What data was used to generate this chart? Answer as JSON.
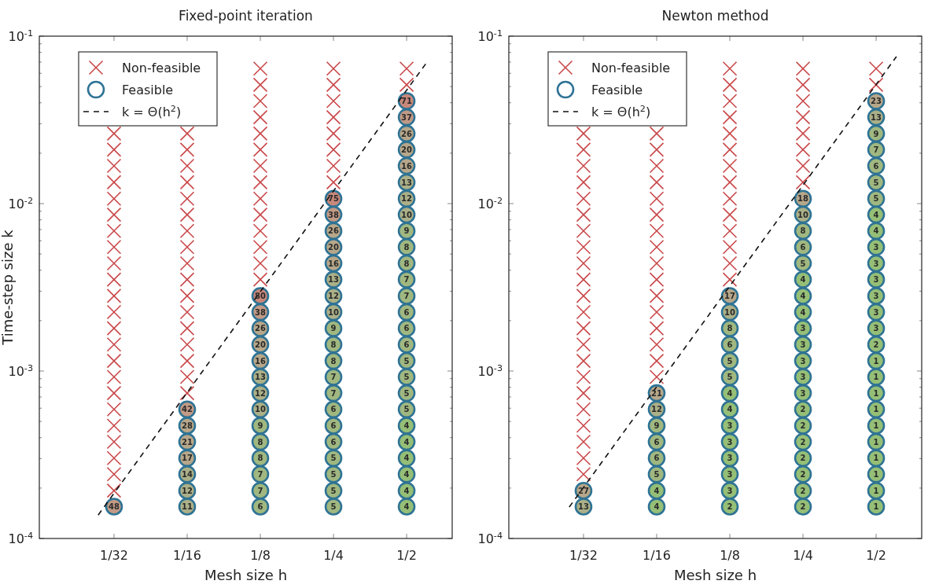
{
  "chart_data": [
    {
      "type": "scatter",
      "title": "Fixed-point iteration",
      "annotations": [
        {
          "text": "48",
          "x": 0.03125,
          "y": 0.000155
        },
        {
          "text": "42",
          "x": 0.0625,
          "y": 0.00059
        },
        {
          "text": "28",
          "x": 0.0625,
          "y": 0.000472
        },
        {
          "text": "21",
          "x": 0.0625,
          "y": 0.000378
        },
        {
          "text": "17",
          "x": 0.0625,
          "y": 0.000302
        },
        {
          "text": "14",
          "x": 0.0625,
          "y": 0.000242
        },
        {
          "text": "12",
          "x": 0.0625,
          "y": 0.000193
        },
        {
          "text": "11",
          "x": 0.0625,
          "y": 0.000155
        },
        {
          "text": "80",
          "x": 0.125,
          "y": 0.00281
        },
        {
          "text": "38",
          "x": 0.125,
          "y": 0.00225
        },
        {
          "text": "26",
          "x": 0.125,
          "y": 0.0018
        },
        {
          "text": "20",
          "x": 0.125,
          "y": 0.00144
        },
        {
          "text": "16",
          "x": 0.125,
          "y": 0.00115
        },
        {
          "text": "13",
          "x": 0.125,
          "y": 0.000922
        },
        {
          "text": "12",
          "x": 0.125,
          "y": 0.000738
        },
        {
          "text": "10",
          "x": 0.125,
          "y": 0.00059
        },
        {
          "text": "9",
          "x": 0.125,
          "y": 0.000472
        },
        {
          "text": "8",
          "x": 0.125,
          "y": 0.000378
        },
        {
          "text": "8",
          "x": 0.125,
          "y": 0.000302
        },
        {
          "text": "7",
          "x": 0.125,
          "y": 0.000242
        },
        {
          "text": "7",
          "x": 0.125,
          "y": 0.000193
        },
        {
          "text": "6",
          "x": 0.125,
          "y": 0.000155
        },
        {
          "text": "75",
          "x": 0.25,
          "y": 0.0107
        },
        {
          "text": "38",
          "x": 0.25,
          "y": 0.00859
        },
        {
          "text": "26",
          "x": 0.25,
          "y": 0.00687
        },
        {
          "text": "20",
          "x": 0.25,
          "y": 0.0055
        },
        {
          "text": "16",
          "x": 0.25,
          "y": 0.0044
        },
        {
          "text": "13",
          "x": 0.25,
          "y": 0.00352
        },
        {
          "text": "12",
          "x": 0.25,
          "y": 0.00281
        },
        {
          "text": "10",
          "x": 0.25,
          "y": 0.00225
        },
        {
          "text": "9",
          "x": 0.25,
          "y": 0.0018
        },
        {
          "text": "8",
          "x": 0.25,
          "y": 0.00144
        },
        {
          "text": "8",
          "x": 0.25,
          "y": 0.00115
        },
        {
          "text": "7",
          "x": 0.25,
          "y": 0.000922
        },
        {
          "text": "7",
          "x": 0.25,
          "y": 0.000738
        },
        {
          "text": "6",
          "x": 0.25,
          "y": 0.00059
        },
        {
          "text": "6",
          "x": 0.25,
          "y": 0.000472
        },
        {
          "text": "6",
          "x": 0.25,
          "y": 0.000378
        },
        {
          "text": "5",
          "x": 0.25,
          "y": 0.000302
        },
        {
          "text": "5",
          "x": 0.25,
          "y": 0.000242
        },
        {
          "text": "5",
          "x": 0.25,
          "y": 0.000193
        },
        {
          "text": "5",
          "x": 0.25,
          "y": 0.000155
        },
        {
          "text": "71",
          "x": 0.5,
          "y": 0.041
        },
        {
          "text": "37",
          "x": 0.5,
          "y": 0.0328
        },
        {
          "text": "26",
          "x": 0.5,
          "y": 0.0262
        },
        {
          "text": "20",
          "x": 0.5,
          "y": 0.021
        },
        {
          "text": "16",
          "x": 0.5,
          "y": 0.0168
        },
        {
          "text": "13",
          "x": 0.5,
          "y": 0.0134
        },
        {
          "text": "12",
          "x": 0.5,
          "y": 0.0107
        },
        {
          "text": "10",
          "x": 0.5,
          "y": 0.00859
        },
        {
          "text": "9",
          "x": 0.5,
          "y": 0.00687
        },
        {
          "text": "8",
          "x": 0.5,
          "y": 0.0055
        },
        {
          "text": "8",
          "x": 0.5,
          "y": 0.0044
        },
        {
          "text": "7",
          "x": 0.5,
          "y": 0.00352
        },
        {
          "text": "7",
          "x": 0.5,
          "y": 0.00281
        },
        {
          "text": "6",
          "x": 0.5,
          "y": 0.00225
        },
        {
          "text": "6",
          "x": 0.5,
          "y": 0.0018
        },
        {
          "text": "6",
          "x": 0.5,
          "y": 0.00144
        },
        {
          "text": "5",
          "x": 0.5,
          "y": 0.00115
        },
        {
          "text": "5",
          "x": 0.5,
          "y": 0.000922
        },
        {
          "text": "5",
          "x": 0.5,
          "y": 0.000738
        },
        {
          "text": "5",
          "x": 0.5,
          "y": 0.00059
        },
        {
          "text": "4",
          "x": 0.5,
          "y": 0.000472
        },
        {
          "text": "4",
          "x": 0.5,
          "y": 0.000378
        },
        {
          "text": "4",
          "x": 0.5,
          "y": 0.000302
        },
        {
          "text": "4",
          "x": 0.5,
          "y": 0.000242
        },
        {
          "text": "4",
          "x": 0.5,
          "y": 0.000193
        },
        {
          "text": "4",
          "x": 0.5,
          "y": 0.000155
        }
      ],
      "xlabel": "Mesh size h",
      "ylabel": "Time-step size k",
      "log": "xy",
      "legend": "top left",
      "xlim": [
        0.0154,
        0.77
      ],
      "ylim": [
        0.0001,
        0.1
      ],
      "xticks": [
        {
          "value": 0.03125,
          "label": "1/32"
        },
        {
          "value": 0.0625,
          "label": "1/16"
        },
        {
          "value": 0.125,
          "label": "1/8"
        },
        {
          "value": 0.25,
          "label": "1/4"
        },
        {
          "value": 0.5,
          "label": "1/2"
        }
      ],
      "yticks": [
        {
          "value": 0.0001,
          "label": "10$^{-4}$"
        },
        {
          "value": 0.0002,
          "label": null
        },
        {
          "value": 0.0003,
          "label": null
        },
        {
          "value": 0.0004,
          "label": null
        },
        {
          "value": 0.0005,
          "label": null
        },
        {
          "value": 0.0006,
          "label": null
        },
        {
          "value": 0.0007,
          "label": null
        },
        {
          "value": 0.0008,
          "label": null
        },
        {
          "value": 0.0009,
          "label": null
        },
        {
          "value": 0.001,
          "label": "10$^{-3}$"
        },
        {
          "value": 0.002,
          "label": null
        },
        {
          "value": 0.003,
          "label": null
        },
        {
          "value": 0.004,
          "label": null
        },
        {
          "value": 0.005,
          "label": null
        },
        {
          "value": 0.006,
          "label": null
        },
        {
          "value": 0.007,
          "label": null
        },
        {
          "value": 0.008,
          "label": null
        },
        {
          "value": 0.009,
          "label": null
        },
        {
          "value": 0.01,
          "label": "10$^{-2}$"
        },
        {
          "value": 0.02,
          "label": null
        },
        {
          "value": 0.03,
          "label": null
        },
        {
          "value": 0.04,
          "label": null
        },
        {
          "value": 0.05,
          "label": null
        },
        {
          "value": 0.06,
          "label": null
        },
        {
          "value": 0.07,
          "label": null
        },
        {
          "value": 0.08,
          "label": null
        },
        {
          "value": 0.09,
          "label": null
        },
        {
          "value": 0.1,
          "label": "10$^{-1}$"
        }
      ],
      "series": [
        {
          "name": "Non-feasible",
          "type": "scatter",
          "marker": "cross",
          "color": "#c9484a",
          "x": [
            0.03125,
            0.03125,
            0.03125,
            0.03125,
            0.03125,
            0.03125,
            0.03125,
            0.03125,
            0.03125,
            0.03125,
            0.03125,
            0.03125,
            0.03125,
            0.03125,
            0.03125,
            0.03125,
            0.03125,
            0.03125,
            0.03125,
            0.03125,
            0.03125,
            0.03125,
            0.03125,
            0.0625,
            0.0625,
            0.0625,
            0.0625,
            0.0625,
            0.0625,
            0.0625,
            0.0625,
            0.0625,
            0.0625,
            0.0625,
            0.0625,
            0.0625,
            0.0625,
            0.0625,
            0.0625,
            0.0625,
            0.125,
            0.125,
            0.125,
            0.125,
            0.125,
            0.125,
            0.125,
            0.125,
            0.125,
            0.125,
            0.125,
            0.125,
            0.125,
            0.125,
            0.25,
            0.25,
            0.25,
            0.25,
            0.25,
            0.25,
            0.25,
            0.25,
            0.5,
            0.5
          ],
          "values": [
            0.0262,
            0.021,
            0.0168,
            0.0134,
            0.0107,
            0.00859,
            0.00687,
            0.0055,
            0.0044,
            0.00352,
            0.00281,
            0.00225,
            0.0018,
            0.00144,
            0.00115,
            0.000922,
            0.000738,
            0.00059,
            0.000472,
            0.000378,
            0.000302,
            0.000242,
            0.000193,
            0.0262,
            0.021,
            0.0168,
            0.0134,
            0.0107,
            0.00859,
            0.00687,
            0.0055,
            0.0044,
            0.00352,
            0.00281,
            0.00225,
            0.0018,
            0.00144,
            0.00115,
            0.000922,
            0.000738,
            0.064,
            0.0512,
            0.041,
            0.0328,
            0.0262,
            0.021,
            0.0168,
            0.0134,
            0.0107,
            0.00859,
            0.00687,
            0.0055,
            0.0044,
            0.00352,
            0.064,
            0.0512,
            0.041,
            0.0328,
            0.0262,
            0.021,
            0.0168,
            0.0134,
            0.064,
            0.0512
          ]
        },
        {
          "name": "Feasible",
          "type": "scatter",
          "marker": "circle",
          "color": "#2f7394",
          "x": [
            0.03125,
            0.0625,
            0.0625,
            0.0625,
            0.0625,
            0.0625,
            0.0625,
            0.0625,
            0.125,
            0.125,
            0.125,
            0.125,
            0.125,
            0.125,
            0.125,
            0.125,
            0.125,
            0.125,
            0.125,
            0.125,
            0.125,
            0.125,
            0.25,
            0.25,
            0.25,
            0.25,
            0.25,
            0.25,
            0.25,
            0.25,
            0.25,
            0.25,
            0.25,
            0.25,
            0.25,
            0.25,
            0.25,
            0.25,
            0.25,
            0.25,
            0.25,
            0.25,
            0.5,
            0.5,
            0.5,
            0.5,
            0.5,
            0.5,
            0.5,
            0.5,
            0.5,
            0.5,
            0.5,
            0.5,
            0.5,
            0.5,
            0.5,
            0.5,
            0.5,
            0.5,
            0.5,
            0.5,
            0.5,
            0.5,
            0.5,
            0.5,
            0.5,
            0.5
          ],
          "values": [
            0.000155,
            0.00059,
            0.000472,
            0.000378,
            0.000302,
            0.000242,
            0.000193,
            0.000155,
            0.00281,
            0.00225,
            0.0018,
            0.00144,
            0.00115,
            0.000922,
            0.000738,
            0.00059,
            0.000472,
            0.000378,
            0.000302,
            0.000242,
            0.000193,
            0.000155,
            0.0107,
            0.00859,
            0.00687,
            0.0055,
            0.0044,
            0.00352,
            0.00281,
            0.00225,
            0.0018,
            0.00144,
            0.00115,
            0.000922,
            0.000738,
            0.00059,
            0.000472,
            0.000378,
            0.000302,
            0.000242,
            0.000193,
            0.000155,
            0.041,
            0.0328,
            0.0262,
            0.021,
            0.0168,
            0.0134,
            0.0107,
            0.00859,
            0.00687,
            0.0055,
            0.0044,
            0.00352,
            0.00281,
            0.00225,
            0.0018,
            0.00144,
            0.00115,
            0.000922,
            0.000738,
            0.00059,
            0.000472,
            0.000378,
            0.000302,
            0.000242,
            0.000193,
            0.000155
          ],
          "colors": [
            "#c29a85",
            "#c29a85",
            "#b7a78a",
            "#b7a78a",
            "#b7a78a",
            "#abb088",
            "#abb088",
            "#abb088",
            "#c8887a",
            "#c29a85",
            "#b7a78a",
            "#b7a78a",
            "#b7a78a",
            "#abb088",
            "#abb088",
            "#abb088",
            "#a0b880",
            "#a0b880",
            "#a0b880",
            "#a0b880",
            "#a0b880",
            "#a0b880",
            "#c8887a",
            "#c29a85",
            "#b7a78a",
            "#b7a78a",
            "#b7a78a",
            "#abb088",
            "#abb088",
            "#abb088",
            "#a0b880",
            "#a0b880",
            "#a0b880",
            "#a0b880",
            "#a0b880",
            "#a0b880",
            "#a0b880",
            "#a0b880",
            "#a0b880",
            "#a0b880",
            "#a0b880",
            "#a0b880",
            "#c8887a",
            "#c29a85",
            "#b7a78a",
            "#b7a78a",
            "#b7a78a",
            "#abb088",
            "#abb088",
            "#abb088",
            "#a0b880",
            "#a0b880",
            "#a0b880",
            "#a0b880",
            "#a0b880",
            "#a0b880",
            "#a0b880",
            "#a0b880",
            "#a0b880",
            "#a0b880",
            "#a0b880",
            "#a0b880",
            "#95bf76",
            "#95bf76",
            "#95bf76",
            "#95bf76",
            "#95bf76",
            "#95bf76"
          ]
        },
        {
          "name": "k = Θ(h$^{2}$)",
          "type": "line",
          "line_style": "dashed",
          "color": "#111111",
          "x": [
            0.0269,
            0.603
          ],
          "values": [
            0.000138,
            0.0692
          ]
        }
      ]
    },
    {
      "type": "scatter",
      "title": "Newton method",
      "annotations": [
        {
          "text": "27",
          "x": 0.03125,
          "y": 0.000193
        },
        {
          "text": "13",
          "x": 0.03125,
          "y": 0.000155
        },
        {
          "text": "21",
          "x": 0.0625,
          "y": 0.000738
        },
        {
          "text": "12",
          "x": 0.0625,
          "y": 0.00059
        },
        {
          "text": "9",
          "x": 0.0625,
          "y": 0.000472
        },
        {
          "text": "6",
          "x": 0.0625,
          "y": 0.000378
        },
        {
          "text": "6",
          "x": 0.0625,
          "y": 0.000302
        },
        {
          "text": "5",
          "x": 0.0625,
          "y": 0.000242
        },
        {
          "text": "4",
          "x": 0.0625,
          "y": 0.000193
        },
        {
          "text": "4",
          "x": 0.0625,
          "y": 0.000155
        },
        {
          "text": "17",
          "x": 0.125,
          "y": 0.00281
        },
        {
          "text": "10",
          "x": 0.125,
          "y": 0.00225
        },
        {
          "text": "8",
          "x": 0.125,
          "y": 0.0018
        },
        {
          "text": "6",
          "x": 0.125,
          "y": 0.00144
        },
        {
          "text": "5",
          "x": 0.125,
          "y": 0.00115
        },
        {
          "text": "5",
          "x": 0.125,
          "y": 0.000922
        },
        {
          "text": "4",
          "x": 0.125,
          "y": 0.000738
        },
        {
          "text": "4",
          "x": 0.125,
          "y": 0.00059
        },
        {
          "text": "3",
          "x": 0.125,
          "y": 0.000472
        },
        {
          "text": "3",
          "x": 0.125,
          "y": 0.000378
        },
        {
          "text": "3",
          "x": 0.125,
          "y": 0.000302
        },
        {
          "text": "3",
          "x": 0.125,
          "y": 0.000242
        },
        {
          "text": "3",
          "x": 0.125,
          "y": 0.000193
        },
        {
          "text": "2",
          "x": 0.125,
          "y": 0.000155
        },
        {
          "text": "18",
          "x": 0.25,
          "y": 0.0107
        },
        {
          "text": "10",
          "x": 0.25,
          "y": 0.00859
        },
        {
          "text": "8",
          "x": 0.25,
          "y": 0.00687
        },
        {
          "text": "6",
          "x": 0.25,
          "y": 0.0055
        },
        {
          "text": "5",
          "x": 0.25,
          "y": 0.0044
        },
        {
          "text": "4",
          "x": 0.25,
          "y": 0.00352
        },
        {
          "text": "4",
          "x": 0.25,
          "y": 0.00281
        },
        {
          "text": "4",
          "x": 0.25,
          "y": 0.00225
        },
        {
          "text": "3",
          "x": 0.25,
          "y": 0.0018
        },
        {
          "text": "3",
          "x": 0.25,
          "y": 0.00144
        },
        {
          "text": "3",
          "x": 0.25,
          "y": 0.00115
        },
        {
          "text": "3",
          "x": 0.25,
          "y": 0.000922
        },
        {
          "text": "3",
          "x": 0.25,
          "y": 0.000738
        },
        {
          "text": "2",
          "x": 0.25,
          "y": 0.00059
        },
        {
          "text": "2",
          "x": 0.25,
          "y": 0.000472
        },
        {
          "text": "2",
          "x": 0.25,
          "y": 0.000378
        },
        {
          "text": "2",
          "x": 0.25,
          "y": 0.000302
        },
        {
          "text": "2",
          "x": 0.25,
          "y": 0.000242
        },
        {
          "text": "2",
          "x": 0.25,
          "y": 0.000193
        },
        {
          "text": "2",
          "x": 0.25,
          "y": 0.000155
        },
        {
          "text": "23",
          "x": 0.5,
          "y": 0.041
        },
        {
          "text": "13",
          "x": 0.5,
          "y": 0.0328
        },
        {
          "text": "9",
          "x": 0.5,
          "y": 0.0262
        },
        {
          "text": "7",
          "x": 0.5,
          "y": 0.021
        },
        {
          "text": "6",
          "x": 0.5,
          "y": 0.0168
        },
        {
          "text": "5",
          "x": 0.5,
          "y": 0.0134
        },
        {
          "text": "5",
          "x": 0.5,
          "y": 0.0107
        },
        {
          "text": "4",
          "x": 0.5,
          "y": 0.00859
        },
        {
          "text": "4",
          "x": 0.5,
          "y": 0.00687
        },
        {
          "text": "3",
          "x": 0.5,
          "y": 0.0055
        },
        {
          "text": "3",
          "x": 0.5,
          "y": 0.0044
        },
        {
          "text": "3",
          "x": 0.5,
          "y": 0.00352
        },
        {
          "text": "3",
          "x": 0.5,
          "y": 0.00281
        },
        {
          "text": "3",
          "x": 0.5,
          "y": 0.00225
        },
        {
          "text": "3",
          "x": 0.5,
          "y": 0.0018
        },
        {
          "text": "2",
          "x": 0.5,
          "y": 0.00144
        },
        {
          "text": "1",
          "x": 0.5,
          "y": 0.00115
        },
        {
          "text": "1",
          "x": 0.5,
          "y": 0.000922
        },
        {
          "text": "1",
          "x": 0.5,
          "y": 0.000738
        },
        {
          "text": "1",
          "x": 0.5,
          "y": 0.00059
        },
        {
          "text": "1",
          "x": 0.5,
          "y": 0.000472
        },
        {
          "text": "1",
          "x": 0.5,
          "y": 0.000378
        },
        {
          "text": "1",
          "x": 0.5,
          "y": 0.000302
        },
        {
          "text": "1",
          "x": 0.5,
          "y": 0.000242
        },
        {
          "text": "1",
          "x": 0.5,
          "y": 0.000193
        },
        {
          "text": "1",
          "x": 0.5,
          "y": 0.000155
        }
      ],
      "xlabel": "Mesh size h",
      "log": "xy",
      "legend": "top left",
      "xlim": [
        0.0154,
        0.77
      ],
      "ylim": [
        0.0001,
        0.1
      ],
      "xticks": [
        {
          "value": 0.03125,
          "label": "1/32"
        },
        {
          "value": 0.0625,
          "label": "1/16"
        },
        {
          "value": 0.125,
          "label": "1/8"
        },
        {
          "value": 0.25,
          "label": "1/4"
        },
        {
          "value": 0.5,
          "label": "1/2"
        }
      ],
      "yticks": [
        {
          "value": 0.0001,
          "label": "10$^{-4}$"
        },
        {
          "value": 0.0002,
          "label": null
        },
        {
          "value": 0.0003,
          "label": null
        },
        {
          "value": 0.0004,
          "label": null
        },
        {
          "value": 0.0005,
          "label": null
        },
        {
          "value": 0.0006,
          "label": null
        },
        {
          "value": 0.0007,
          "label": null
        },
        {
          "value": 0.0008,
          "label": null
        },
        {
          "value": 0.0009,
          "label": null
        },
        {
          "value": 0.001,
          "label": "10$^{-3}$"
        },
        {
          "value": 0.002,
          "label": null
        },
        {
          "value": 0.003,
          "label": null
        },
        {
          "value": 0.004,
          "label": null
        },
        {
          "value": 0.005,
          "label": null
        },
        {
          "value": 0.006,
          "label": null
        },
        {
          "value": 0.007,
          "label": null
        },
        {
          "value": 0.008,
          "label": null
        },
        {
          "value": 0.009,
          "label": null
        },
        {
          "value": 0.01,
          "label": "10$^{-2}$"
        },
        {
          "value": 0.02,
          "label": null
        },
        {
          "value": 0.03,
          "label": null
        },
        {
          "value": 0.04,
          "label": null
        },
        {
          "value": 0.05,
          "label": null
        },
        {
          "value": 0.06,
          "label": null
        },
        {
          "value": 0.07,
          "label": null
        },
        {
          "value": 0.08,
          "label": null
        },
        {
          "value": 0.09,
          "label": null
        },
        {
          "value": 0.1,
          "label": "10$^{-1}$"
        }
      ],
      "series": [
        {
          "name": "Non-feasible",
          "type": "scatter",
          "marker": "cross",
          "color": "#c9484a",
          "x": [
            0.03125,
            0.03125,
            0.03125,
            0.03125,
            0.03125,
            0.03125,
            0.03125,
            0.03125,
            0.03125,
            0.03125,
            0.03125,
            0.03125,
            0.03125,
            0.03125,
            0.03125,
            0.03125,
            0.03125,
            0.03125,
            0.03125,
            0.03125,
            0.03125,
            0.03125,
            0.0625,
            0.0625,
            0.0625,
            0.0625,
            0.0625,
            0.0625,
            0.0625,
            0.0625,
            0.0625,
            0.0625,
            0.0625,
            0.0625,
            0.0625,
            0.0625,
            0.0625,
            0.0625,
            0.125,
            0.125,
            0.125,
            0.125,
            0.125,
            0.125,
            0.125,
            0.125,
            0.125,
            0.125,
            0.125,
            0.125,
            0.125,
            0.125,
            0.25,
            0.25,
            0.25,
            0.25,
            0.25,
            0.25,
            0.25,
            0.25,
            0.5,
            0.5
          ],
          "values": [
            0.0262,
            0.021,
            0.0168,
            0.0134,
            0.0107,
            0.00859,
            0.00687,
            0.0055,
            0.0044,
            0.00352,
            0.00281,
            0.00225,
            0.0018,
            0.00144,
            0.00115,
            0.000922,
            0.000738,
            0.00059,
            0.000472,
            0.000378,
            0.000302,
            0.000242,
            0.0262,
            0.021,
            0.0168,
            0.0134,
            0.0107,
            0.00859,
            0.00687,
            0.0055,
            0.0044,
            0.00352,
            0.00281,
            0.00225,
            0.0018,
            0.00144,
            0.00115,
            0.000922,
            0.064,
            0.0512,
            0.041,
            0.0328,
            0.0262,
            0.021,
            0.0168,
            0.0134,
            0.0107,
            0.00859,
            0.00687,
            0.0055,
            0.0044,
            0.00352,
            0.064,
            0.0512,
            0.041,
            0.0328,
            0.0262,
            0.021,
            0.0168,
            0.0134,
            0.064,
            0.0512
          ]
        },
        {
          "name": "Feasible",
          "type": "scatter",
          "marker": "circle",
          "color": "#2f7394",
          "x": [
            0.03125,
            0.03125,
            0.0625,
            0.0625,
            0.0625,
            0.0625,
            0.0625,
            0.0625,
            0.0625,
            0.0625,
            0.125,
            0.125,
            0.125,
            0.125,
            0.125,
            0.125,
            0.125,
            0.125,
            0.125,
            0.125,
            0.125,
            0.125,
            0.125,
            0.125,
            0.25,
            0.25,
            0.25,
            0.25,
            0.25,
            0.25,
            0.25,
            0.25,
            0.25,
            0.25,
            0.25,
            0.25,
            0.25,
            0.25,
            0.25,
            0.25,
            0.25,
            0.25,
            0.25,
            0.25,
            0.5,
            0.5,
            0.5,
            0.5,
            0.5,
            0.5,
            0.5,
            0.5,
            0.5,
            0.5,
            0.5,
            0.5,
            0.5,
            0.5,
            0.5,
            0.5,
            0.5,
            0.5,
            0.5,
            0.5,
            0.5,
            0.5,
            0.5,
            0.5,
            0.5,
            0.5
          ],
          "values": [
            0.000193,
            0.000155,
            0.000738,
            0.00059,
            0.000472,
            0.000378,
            0.000302,
            0.000242,
            0.000193,
            0.000155,
            0.00281,
            0.00225,
            0.0018,
            0.00144,
            0.00115,
            0.000922,
            0.000738,
            0.00059,
            0.000472,
            0.000378,
            0.000302,
            0.000242,
            0.000193,
            0.000155,
            0.0107,
            0.00859,
            0.00687,
            0.0055,
            0.0044,
            0.00352,
            0.00281,
            0.00225,
            0.0018,
            0.00144,
            0.00115,
            0.000922,
            0.000738,
            0.00059,
            0.000472,
            0.000378,
            0.000302,
            0.000242,
            0.000193,
            0.000155,
            0.041,
            0.0328,
            0.0262,
            0.021,
            0.0168,
            0.0134,
            0.0107,
            0.00859,
            0.00687,
            0.0055,
            0.0044,
            0.00352,
            0.00281,
            0.00225,
            0.0018,
            0.00144,
            0.00115,
            0.000922,
            0.000738,
            0.00059,
            0.000472,
            0.000378,
            0.000302,
            0.000242,
            0.000193,
            0.000155
          ],
          "colors": [
            "#b7a78a",
            "#abb088",
            "#b7a78a",
            "#abb088",
            "#a0b880",
            "#a0b880",
            "#a0b880",
            "#a0b880",
            "#95bf76",
            "#95bf76",
            "#b7a78a",
            "#abb088",
            "#a0b880",
            "#a0b880",
            "#a0b880",
            "#a0b880",
            "#95bf76",
            "#95bf76",
            "#95bf76",
            "#95bf76",
            "#95bf76",
            "#95bf76",
            "#95bf76",
            "#95bf76",
            "#b7a78a",
            "#abb088",
            "#a0b880",
            "#a0b880",
            "#a0b880",
            "#95bf76",
            "#95bf76",
            "#95bf76",
            "#95bf76",
            "#95bf76",
            "#95bf76",
            "#95bf76",
            "#95bf76",
            "#95bf76",
            "#95bf76",
            "#95bf76",
            "#95bf76",
            "#95bf76",
            "#95bf76",
            "#95bf76",
            "#b7a78a",
            "#abb088",
            "#a0b880",
            "#a0b880",
            "#a0b880",
            "#a0b880",
            "#a0b880",
            "#95bf76",
            "#95bf76",
            "#95bf76",
            "#95bf76",
            "#95bf76",
            "#95bf76",
            "#95bf76",
            "#95bf76",
            "#95bf76",
            "#95bf76",
            "#95bf76",
            "#95bf76",
            "#95bf76",
            "#95bf76",
            "#95bf76",
            "#95bf76",
            "#95bf76",
            "#95bf76",
            "#95bf76"
          ]
        },
        {
          "name": "k = Θ(h$^{2}$)",
          "type": "line",
          "line_style": "dashed",
          "color": "#111111",
          "x": [
            0.0273,
            0.606
          ],
          "values": [
            0.000154,
            0.0755
          ]
        }
      ]
    }
  ]
}
